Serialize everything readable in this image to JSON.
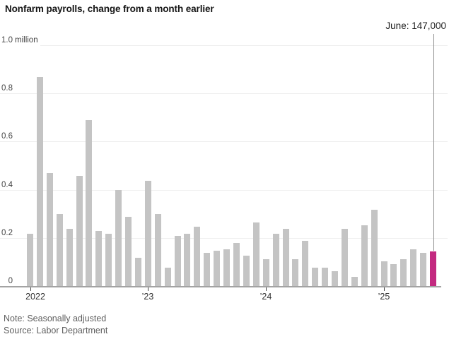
{
  "title": "Nonfarm payrolls, change from a month earlier",
  "annotation": {
    "label": "June: 147,000"
  },
  "footer": {
    "note": "Note: Seasonally adjusted",
    "source": "Source: Labor Department"
  },
  "colors": {
    "bar": "#c4c4c4",
    "highlight": "#c32a80",
    "gridline": "#efefef",
    "baseline": "#a3a3a3",
    "annotation_line": "#8c8c8c"
  },
  "chart_data": {
    "type": "bar",
    "title": "Nonfarm payrolls, change from a month earlier",
    "unit": "millions of jobs, change from a month earlier",
    "note": "Seasonally adjusted",
    "source": "Labor Department",
    "grid": "horizontal",
    "legend": "none",
    "ylim": [
      0,
      1.0
    ],
    "x": [
      "Jan 2022",
      "Feb 2022",
      "Mar 2022",
      "Apr 2022",
      "May 2022",
      "Jun 2022",
      "Jul 2022",
      "Aug 2022",
      "Sep 2022",
      "Oct 2022",
      "Nov 2022",
      "Dec 2022",
      "Jan 2023",
      "Feb 2023",
      "Mar 2023",
      "Apr 2023",
      "May 2023",
      "Jun 2023",
      "Jul 2023",
      "Aug 2023",
      "Sep 2023",
      "Oct 2023",
      "Nov 2023",
      "Dec 2023",
      "Jan 2024",
      "Feb 2024",
      "Mar 2024",
      "Apr 2024",
      "May 2024",
      "Jun 2024",
      "Jul 2024",
      "Aug 2024",
      "Sep 2024",
      "Oct 2024",
      "Nov 2024",
      "Dec 2024",
      "Jan 2025",
      "Feb 2025",
      "Mar 2025",
      "Apr 2025",
      "May 2025",
      "Jun 2025"
    ],
    "values": [
      0.22,
      0.87,
      0.47,
      0.3,
      0.24,
      0.46,
      0.69,
      0.23,
      0.22,
      0.4,
      0.29,
      0.12,
      0.44,
      0.3,
      0.08,
      0.21,
      0.22,
      0.25,
      0.14,
      0.15,
      0.155,
      0.18,
      0.13,
      0.265,
      0.115,
      0.22,
      0.24,
      0.115,
      0.19,
      0.08,
      0.08,
      0.065,
      0.24,
      0.04,
      0.255,
      0.32,
      0.105,
      0.095,
      0.115,
      0.155,
      0.14,
      0.147
    ],
    "highlight_index": 41,
    "highlight_value_label": "June: 147,000",
    "yticks": [
      {
        "label": "1.0",
        "suffix": "million",
        "value": 1.0
      },
      {
        "label": "0.8",
        "suffix": "",
        "value": 0.8
      },
      {
        "label": "0.6",
        "suffix": "",
        "value": 0.6
      },
      {
        "label": "0.4",
        "suffix": "",
        "value": 0.4
      },
      {
        "label": "0.2",
        "suffix": "",
        "value": 0.2
      },
      {
        "label": "0",
        "suffix": "",
        "value": 0
      }
    ],
    "xticks": [
      {
        "label": "2022",
        "month_index": 0
      },
      {
        "label": "’23",
        "month_index": 12
      },
      {
        "label": "’24",
        "month_index": 24
      },
      {
        "label": "’25",
        "month_index": 36
      }
    ]
  }
}
